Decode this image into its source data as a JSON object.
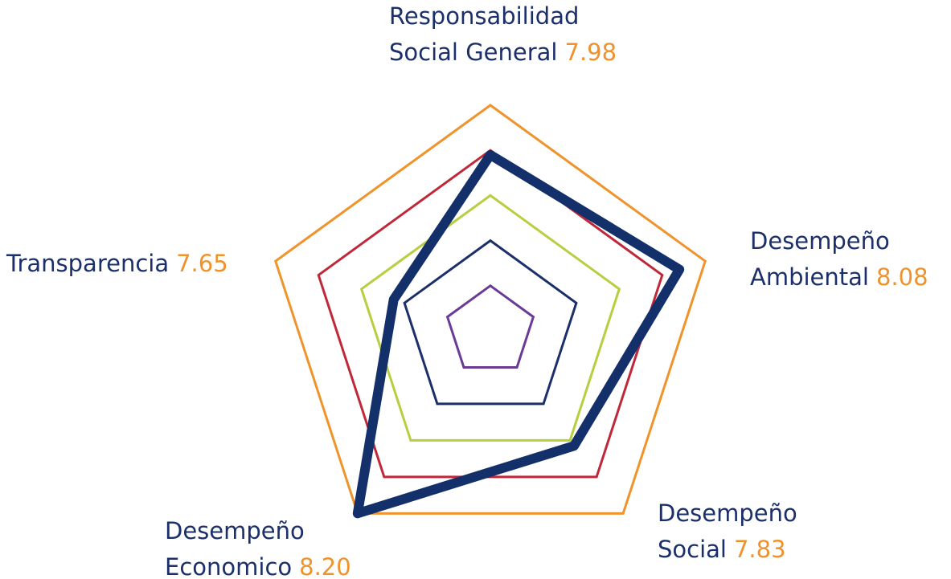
{
  "chart_data": {
    "type": "radar",
    "categories": [
      [
        "Responsabilidad",
        "Social General"
      ],
      [
        "Desempeño",
        "Ambiental"
      ],
      [
        "Desempeño",
        "Social"
      ],
      [
        "Desempeño",
        "Economico"
      ],
      [
        "Transparencia"
      ]
    ],
    "values": [
      7.98,
      8.08,
      7.83,
      8.2,
      7.65
    ],
    "value_labels": [
      "7.98",
      "8.08",
      "7.83",
      "8.20",
      "7.65"
    ],
    "color": "#13306b",
    "label_color": "#1b2f6b",
    "value_label_color": "#f0922b",
    "rlim": [
      7.2,
      8.2
    ],
    "rticks": [
      7.4,
      7.6,
      7.8,
      8.0,
      8.2
    ],
    "ring_colors": [
      "#6a3a97",
      "#1b2f6b",
      "#b6cf3e",
      "#c0283a",
      "#f0932b"
    ]
  }
}
